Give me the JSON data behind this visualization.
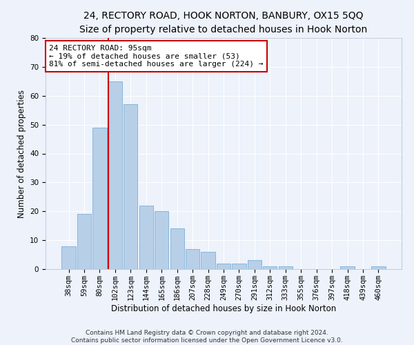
{
  "title_line1": "24, RECTORY ROAD, HOOK NORTON, BANBURY, OX15 5QQ",
  "title_line2": "Size of property relative to detached houses in Hook Norton",
  "xlabel": "Distribution of detached houses by size in Hook Norton",
  "ylabel": "Number of detached properties",
  "categories": [
    "38sqm",
    "59sqm",
    "80sqm",
    "102sqm",
    "123sqm",
    "144sqm",
    "165sqm",
    "186sqm",
    "207sqm",
    "228sqm",
    "249sqm",
    "270sqm",
    "291sqm",
    "312sqm",
    "333sqm",
    "355sqm",
    "376sqm",
    "397sqm",
    "418sqm",
    "439sqm",
    "460sqm"
  ],
  "values": [
    8,
    19,
    49,
    65,
    57,
    22,
    20,
    14,
    7,
    6,
    2,
    2,
    3,
    1,
    1,
    0,
    0,
    0,
    1,
    0,
    1
  ],
  "bar_color": "#b8cfe8",
  "bar_edge_color": "#7aafd4",
  "background_color": "#edf2fb",
  "grid_color": "#ffffff",
  "vline_color": "#cc0000",
  "annotation_line1": "24 RECTORY ROAD: 95sqm",
  "annotation_line2": "← 19% of detached houses are smaller (53)",
  "annotation_line3": "81% of semi-detached houses are larger (224) →",
  "annotation_box_color": "#ffffff",
  "annotation_box_edge": "#cc0000",
  "ylim": [
    0,
    80
  ],
  "yticks": [
    0,
    10,
    20,
    30,
    40,
    50,
    60,
    70,
    80
  ],
  "footnote": "Contains HM Land Registry data © Crown copyright and database right 2024.\nContains public sector information licensed under the Open Government Licence v3.0.",
  "title_fontsize": 10,
  "subtitle_fontsize": 9,
  "axis_label_fontsize": 8.5,
  "tick_fontsize": 7.5,
  "annotation_fontsize": 8,
  "ylabel_fontsize": 8.5
}
